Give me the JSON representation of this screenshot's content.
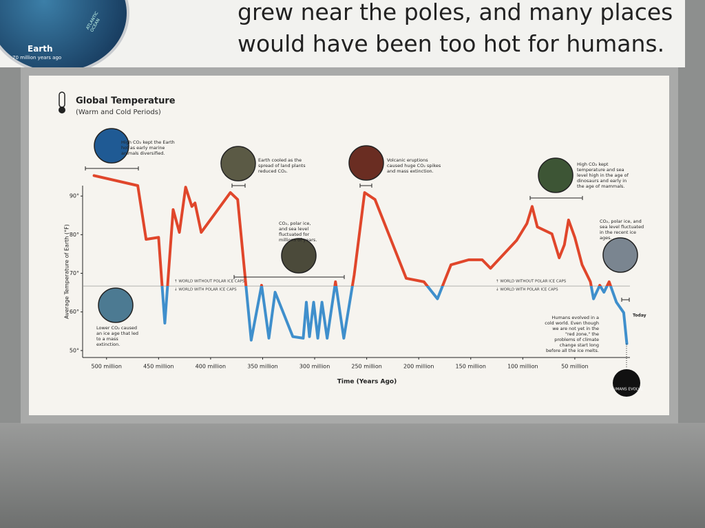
{
  "header": {
    "text_lines": [
      "grew near the poles, and many places",
      "would have been too hot for humans."
    ],
    "earth_label": "Earth",
    "earth_caption": "70 million years ago",
    "ocean_label": "ATLANTIC OCEAN"
  },
  "chart_data": {
    "type": "line",
    "title": "Global Temperature",
    "subtitle": "(Warm and Cold Periods)",
    "x_label": "Time (Years Ago)",
    "y_label": "Average Temperature of Earth (°F)",
    "x": [
      512,
      470,
      462,
      450,
      444,
      436,
      430,
      424,
      418,
      415,
      409,
      381,
      374,
      361,
      351,
      344,
      338,
      321,
      311,
      308,
      305,
      301,
      297,
      293,
      288,
      280,
      272,
      262,
      252,
      242,
      212,
      195,
      182,
      169,
      152,
      139,
      131,
      106,
      96,
      91,
      86,
      72,
      65,
      60,
      56,
      50,
      43,
      35,
      32,
      26,
      22,
      17,
      10,
      3,
      0
    ],
    "values": [
      95.3,
      92.7,
      78.8,
      79.3,
      57.1,
      86.5,
      80.6,
      92.3,
      87.3,
      88.2,
      80.6,
      90.9,
      89.1,
      52.7,
      66.9,
      53.2,
      65.1,
      53.6,
      53.2,
      62.5,
      53.6,
      62.5,
      53.2,
      62.5,
      53.2,
      67.8,
      53.2,
      69.6,
      90.9,
      89.1,
      68.7,
      67.8,
      63.4,
      72.2,
      73.5,
      73.5,
      71.3,
      78.5,
      82.9,
      87.3,
      82,
      80.2,
      74,
      77.4,
      83.8,
      79.3,
      72.2,
      67.8,
      63.4,
      66.9,
      65.1,
      67.8,
      62.5,
      59.8,
      51.8
    ],
    "warm_color": "#e0462b",
    "cold_color": "#3f8fcc",
    "threshold": 66.7,
    "xlim": [
      523,
      -3
    ],
    "ylim": [
      48.2,
      92.7
    ],
    "xticks": [
      {
        "value": 500,
        "label": "500 million"
      },
      {
        "value": 450,
        "label": "450 million"
      },
      {
        "value": 400,
        "label": "400 million"
      },
      {
        "value": 350,
        "label": "350 million"
      },
      {
        "value": 300,
        "label": "300 million"
      },
      {
        "value": 250,
        "label": "250 million"
      },
      {
        "value": 200,
        "label": "200 million"
      },
      {
        "value": 150,
        "label": "150 million"
      },
      {
        "value": 100,
        "label": "100 million"
      },
      {
        "value": 50,
        "label": "50 million"
      }
    ],
    "yticks": [
      {
        "value": 90,
        "label": "90°"
      },
      {
        "value": 80,
        "label": "80°"
      },
      {
        "value": 70,
        "label": "70°"
      },
      {
        "value": 60,
        "label": "60°"
      },
      {
        "value": 50,
        "label": "50°"
      }
    ],
    "threshold_labels": [
      "↑ WORLD WITHOUT POLAR ICE CAPS",
      "↓ WORLD WITH POLAR ICE CAPS"
    ],
    "today_label": "Today",
    "humans_label": "HUMANS EVOLVE",
    "annotations": [
      "High CO₂ kept the Earth hot as early marine animals diversified.",
      "Earth cooled as the spread of land plants reduced CO₂.",
      "Volcanic eruptions caused huge CO₂ spikes and mass extinction.",
      "High CO₂ kept temperature and sea level high in the age of dinosaurs and early in the age of mammals.",
      "CO₂, polar ice, and sea level fluctuated for millions of years.",
      "CO₂, polar ice, and sea level fluctuated in the recent ice ages.",
      "Lower CO₂ caused an ice age that led to a mass extinction.",
      "Humans evolved in a cold world. Even though we are not yet in the \"red zone,\" the problems of climate change start long before all the ice melts."
    ]
  }
}
